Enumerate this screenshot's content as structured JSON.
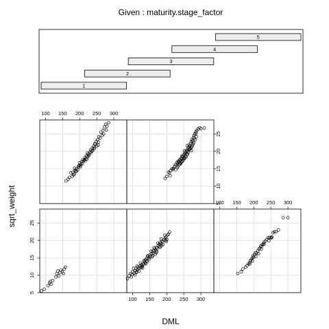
{
  "chart_data": {
    "type": "scatter",
    "title": "Given : maturity.stage_factor",
    "xlabel": "DML",
    "ylabel": "sqrt_weight",
    "xlim": [
      83,
      338
    ],
    "ylim": [
      5,
      29
    ],
    "x_ticks": [
      100,
      150,
      200,
      250,
      300
    ],
    "y_ticks": [
      5,
      10,
      15,
      20,
      25
    ],
    "grid": true,
    "point_style": "open-circle",
    "given": {
      "label": "maturity.stage_factor",
      "levels": [
        {
          "name": "1",
          "range": [
            85,
            232
          ]
        },
        {
          "name": "2",
          "range": [
            160,
            307
          ]
        },
        {
          "name": "3",
          "range": [
            235,
            382
          ]
        },
        {
          "name": "4",
          "range": [
            310,
            457
          ]
        },
        {
          "name": "5",
          "range": [
            385,
            532
          ]
        }
      ]
    },
    "panels": [
      {
        "stage": "1",
        "points": [
          [
            88,
            5.5
          ],
          [
            96,
            6
          ],
          [
            107,
            7
          ],
          [
            112,
            7.8
          ],
          [
            114,
            8.2
          ],
          [
            116,
            7.4
          ],
          [
            121,
            8.5
          ],
          [
            130,
            9.5
          ],
          [
            133,
            10.5
          ],
          [
            136,
            11.2
          ],
          [
            139,
            9.8
          ],
          [
            142,
            10.8
          ],
          [
            145,
            11.5
          ],
          [
            149,
            11
          ],
          [
            152,
            10.5
          ],
          [
            155,
            11.8
          ],
          [
            158,
            12.3
          ]
        ]
      },
      {
        "stage": "2",
        "points": [
          [
            160,
            11.5
          ],
          [
            166,
            12
          ],
          [
            170,
            12.5
          ],
          [
            174,
            13.8
          ],
          [
            178,
            12.8
          ],
          [
            180,
            14
          ],
          [
            184,
            13.5
          ],
          [
            186,
            14.5
          ],
          [
            188,
            14.2
          ],
          [
            191,
            15
          ],
          [
            194,
            14.7
          ],
          [
            196,
            15.4
          ],
          [
            199,
            16
          ],
          [
            202,
            15.6
          ],
          [
            204,
            16.4
          ],
          [
            206,
            17
          ],
          [
            208,
            16.5
          ],
          [
            211,
            17.2
          ],
          [
            214,
            17.6
          ],
          [
            216,
            18.2
          ],
          [
            218,
            17.8
          ],
          [
            220,
            18.6
          ],
          [
            223,
            18.4
          ],
          [
            225,
            19.2
          ],
          [
            228,
            19
          ],
          [
            230,
            19.8
          ],
          [
            232,
            20.4
          ],
          [
            235,
            20
          ],
          [
            237,
            20.9
          ],
          [
            240,
            21.4
          ],
          [
            243,
            21
          ],
          [
            246,
            22
          ],
          [
            249,
            22.8
          ],
          [
            252,
            23.3
          ],
          [
            256,
            24.2
          ],
          [
            262,
            25.5
          ],
          [
            268,
            26
          ],
          [
            272,
            27
          ],
          [
            276,
            27.8
          ],
          [
            280,
            27.2
          ],
          [
            285,
            28.2
          ],
          [
            182,
            13.2
          ],
          [
            197,
            15.8
          ],
          [
            209,
            17.6
          ],
          [
            221,
            17.7
          ],
          [
            233,
            19.6
          ],
          [
            244,
            22.2
          ],
          [
            255,
            22.6
          ],
          [
            266,
            24.6
          ],
          [
            190,
            14.3
          ],
          [
            203,
            16
          ],
          [
            215,
            17.3
          ],
          [
            226,
            18.7
          ],
          [
            238,
            20.2
          ],
          [
            250,
            21.5
          ],
          [
            260,
            23.8
          ],
          [
            270,
            25
          ],
          [
            278,
            26.1
          ],
          [
            200,
            16.7
          ],
          [
            222,
            19.5
          ],
          [
            242,
            20.7
          ],
          [
            254,
            21.8
          ],
          [
            185,
            15.1
          ]
        ]
      },
      {
        "stage": "3",
        "points": [
          [
            85,
            9
          ],
          [
            90,
            9.8
          ],
          [
            94,
            10.5
          ],
          [
            98,
            10.2
          ],
          [
            100,
            11
          ],
          [
            104,
            10.6
          ],
          [
            108,
            11.3
          ],
          [
            110,
            12
          ],
          [
            114,
            11.6
          ],
          [
            116,
            12.3
          ],
          [
            118,
            11.9
          ],
          [
            121,
            12.6
          ],
          [
            124,
            12.2
          ],
          [
            126,
            13
          ],
          [
            128,
            12.7
          ],
          [
            131,
            13.4
          ],
          [
            133,
            13.1
          ],
          [
            135,
            13.9
          ],
          [
            138,
            14.5
          ],
          [
            140,
            14.1
          ],
          [
            142,
            14.9
          ],
          [
            145,
            15.4
          ],
          [
            147,
            15
          ],
          [
            150,
            15.8
          ],
          [
            152,
            15.4
          ],
          [
            155,
            16.2
          ],
          [
            158,
            16.8
          ],
          [
            160,
            16.3
          ],
          [
            162,
            17.1
          ],
          [
            165,
            17.6
          ],
          [
            168,
            17.2
          ],
          [
            170,
            18
          ],
          [
            172,
            17.7
          ],
          [
            175,
            18.5
          ],
          [
            178,
            18.9
          ],
          [
            180,
            19.4
          ],
          [
            183,
            19
          ],
          [
            186,
            19.8
          ],
          [
            188,
            19.5
          ],
          [
            192,
            20.2
          ],
          [
            195,
            20.6
          ],
          [
            198,
            21
          ],
          [
            200,
            20.3
          ],
          [
            202,
            21.5
          ],
          [
            205,
            21.8
          ],
          [
            208,
            22.4
          ],
          [
            103,
            12
          ],
          [
            107,
            10.1
          ],
          [
            113,
            12.6
          ],
          [
            119,
            11.2
          ],
          [
            123,
            13.5
          ],
          [
            129,
            12.1
          ],
          [
            134,
            14.2
          ],
          [
            139,
            13.3
          ],
          [
            144,
            15.6
          ],
          [
            149,
            14.6
          ],
          [
            154,
            16.9
          ],
          [
            159,
            15.6
          ],
          [
            163,
            17.9
          ],
          [
            169,
            16.5
          ],
          [
            174,
            19.2
          ],
          [
            179,
            18.2
          ],
          [
            184,
            20.4
          ],
          [
            189,
            18.8
          ],
          [
            194,
            21.5
          ],
          [
            199,
            19.7
          ],
          [
            96,
            9.5
          ],
          [
            112,
            11
          ],
          [
            127,
            12.4
          ],
          [
            143,
            13.9
          ],
          [
            157,
            15.3
          ],
          [
            171,
            16.8
          ],
          [
            185,
            18.5
          ],
          [
            197,
            20
          ],
          [
            111,
            10.8
          ],
          [
            137,
            13.6
          ],
          [
            166,
            16
          ],
          [
            181,
            18.1
          ]
        ]
      },
      {
        "stage": "4",
        "points": [
          [
            205,
            14
          ],
          [
            208,
            13.8
          ],
          [
            212,
            14.5
          ],
          [
            215,
            15
          ],
          [
            218,
            14.8
          ],
          [
            222,
            15.6
          ],
          [
            225,
            16.2
          ],
          [
            228,
            16
          ],
          [
            230,
            16.8
          ],
          [
            232,
            16.5
          ],
          [
            234,
            17.2
          ],
          [
            236,
            17
          ],
          [
            238,
            17.6
          ],
          [
            240,
            17.4
          ],
          [
            242,
            18
          ],
          [
            244,
            17.8
          ],
          [
            246,
            18.5
          ],
          [
            248,
            18.3
          ],
          [
            250,
            19
          ],
          [
            252,
            19.4
          ],
          [
            254,
            19.1
          ],
          [
            256,
            19.8
          ],
          [
            258,
            20.3
          ],
          [
            260,
            20
          ],
          [
            262,
            20.8
          ],
          [
            264,
            21.2
          ],
          [
            266,
            21.8
          ],
          [
            268,
            21.5
          ],
          [
            270,
            22.3
          ],
          [
            272,
            22.8
          ],
          [
            274,
            23.4
          ],
          [
            276,
            23
          ],
          [
            278,
            24
          ],
          [
            280,
            24.5
          ],
          [
            282,
            25
          ],
          [
            285,
            25.6
          ],
          [
            288,
            26
          ],
          [
            292,
            26.4
          ],
          [
            296,
            26.8
          ],
          [
            300,
            26.5
          ],
          [
            310,
            26.7
          ],
          [
            239,
            16.6
          ],
          [
            243,
            16.9
          ],
          [
            247,
            17.3
          ],
          [
            251,
            18.1
          ],
          [
            255,
            18.7
          ],
          [
            259,
            19.3
          ],
          [
            263,
            19.7
          ],
          [
            267,
            20.6
          ],
          [
            271,
            21
          ],
          [
            275,
            21.7
          ],
          [
            279,
            22.5
          ],
          [
            283,
            23.3
          ],
          [
            287,
            24.2
          ],
          [
            233,
            15.6
          ],
          [
            237,
            16.2
          ],
          [
            241,
            16.4
          ],
          [
            245,
            17.1
          ],
          [
            249,
            17.7
          ],
          [
            253,
            18
          ],
          [
            257,
            18.4
          ],
          [
            261,
            19.1
          ],
          [
            265,
            20.4
          ],
          [
            269,
            20.7
          ],
          [
            273,
            21.3
          ],
          [
            277,
            22.1
          ],
          [
            281,
            23.7
          ],
          [
            195,
            12.2
          ],
          [
            200,
            12.8
          ],
          [
            210,
            13
          ],
          [
            220,
            15.1
          ],
          [
            226,
            14.7
          ],
          [
            231,
            15.3
          ],
          [
            235,
            16.8
          ],
          [
            244,
            18.6
          ],
          [
            252,
            20.1
          ],
          [
            260,
            21.6
          ],
          [
            272,
            20.2
          ],
          [
            286,
            25.2
          ]
        ]
      },
      {
        "stage": "5",
        "points": [
          [
            153,
            10.5
          ],
          [
            163,
            11
          ],
          [
            168,
            11.8
          ],
          [
            176,
            12.3
          ],
          [
            180,
            12.8
          ],
          [
            184,
            13.3
          ],
          [
            188,
            13.6
          ],
          [
            190,
            14.2
          ],
          [
            193,
            14.6
          ],
          [
            196,
            15
          ],
          [
            198,
            15.6
          ],
          [
            200,
            15.2
          ],
          [
            202,
            16
          ],
          [
            205,
            16.5
          ],
          [
            208,
            16.3
          ],
          [
            212,
            17
          ],
          [
            215,
            17.5
          ],
          [
            218,
            17.8
          ],
          [
            220,
            18.4
          ],
          [
            223,
            18.2
          ],
          [
            225,
            18.8
          ],
          [
            228,
            19
          ],
          [
            230,
            19.5
          ],
          [
            234,
            19.8
          ],
          [
            238,
            20.3
          ],
          [
            242,
            20.8
          ],
          [
            246,
            20.9
          ],
          [
            250,
            20.7
          ],
          [
            253,
            21
          ],
          [
            256,
            22.2
          ],
          [
            260,
            22.5
          ],
          [
            265,
            22.5
          ],
          [
            272,
            23
          ],
          [
            286,
            26.5
          ],
          [
            300,
            26.5
          ],
          [
            188,
            13.2
          ],
          [
            196,
            14.1
          ],
          [
            206,
            15.4
          ],
          [
            214,
            16.2
          ],
          [
            222,
            17.5
          ],
          [
            230,
            18.9
          ],
          [
            244,
            19.9
          ],
          [
            252,
            20.8
          ]
        ]
      }
    ]
  }
}
